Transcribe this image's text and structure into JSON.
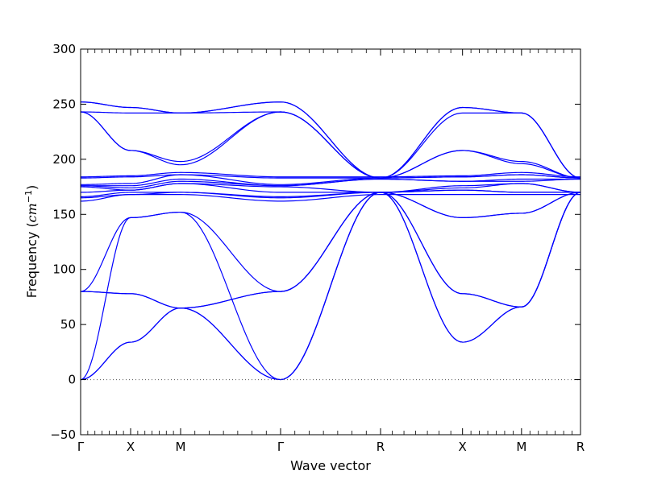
{
  "chart_data": {
    "type": "line",
    "title": "",
    "xlabel": "Wave vector",
    "ylabel": {
      "text": "Frequency (",
      "unit_math": "cm",
      "unit_sup": "−1",
      "suffix": ")"
    },
    "ylim": [
      -50,
      300
    ],
    "yticks": [
      -50,
      0,
      50,
      100,
      150,
      200,
      250,
      300
    ],
    "xlim": [
      0,
      10
    ],
    "high_symmetry_points": [
      {
        "label": "Γ",
        "x": 0
      },
      {
        "label": "X",
        "x": 1
      },
      {
        "label": "M",
        "x": 2
      },
      {
        "label": "Γ",
        "x": 4
      },
      {
        "label": "R",
        "x": 6
      },
      {
        "label": "X",
        "x": 7.64
      },
      {
        "label": "M",
        "x": 8.82
      },
      {
        "label": "R",
        "x": 10
      }
    ],
    "zero_line": {
      "y": 0,
      "style": "dotted",
      "color": "#555555"
    },
    "line_color": "#0000ff",
    "grid": false,
    "series": [
      {
        "x": [
          0,
          1,
          2,
          4,
          6,
          7.64,
          8.82,
          10
        ],
        "values": [
          0,
          34,
          65,
          0,
          170,
          34,
          66,
          170
        ]
      },
      {
        "x": [
          0,
          1,
          2,
          4,
          6,
          7.64,
          8.82,
          10
        ],
        "values": [
          0,
          34,
          65,
          0,
          170,
          34,
          66,
          170
        ]
      },
      {
        "x": [
          0,
          1,
          2,
          4,
          6,
          7.64,
          8.82,
          10
        ],
        "values": [
          0,
          147,
          152,
          0,
          170,
          147,
          151,
          170
        ]
      },
      {
        "x": [
          0,
          1,
          2,
          4,
          6,
          7.64,
          8.82,
          10
        ],
        "values": [
          80,
          78,
          65,
          80,
          170,
          78,
          66,
          170
        ]
      },
      {
        "x": [
          0,
          1,
          2,
          4,
          6,
          7.64,
          8.82,
          10
        ],
        "values": [
          80,
          78,
          65,
          80,
          170,
          78,
          66,
          170
        ]
      },
      {
        "x": [
          0,
          1,
          2,
          4,
          6,
          7.64,
          8.82,
          10
        ],
        "values": [
          80,
          147,
          152,
          80,
          170,
          147,
          151,
          170
        ]
      },
      {
        "x": [
          0,
          1,
          2,
          4,
          6,
          7.64,
          8.82,
          10
        ],
        "values": [
          162,
          168,
          168,
          162,
          168,
          168,
          168,
          168
        ]
      },
      {
        "x": [
          0,
          1,
          2,
          4,
          6,
          7.64,
          8.82,
          10
        ],
        "values": [
          165,
          168,
          170,
          165,
          170,
          172,
          170,
          170
        ]
      },
      {
        "x": [
          0,
          1,
          2,
          4,
          6,
          7.64,
          8.82,
          10
        ],
        "values": [
          166,
          170,
          170,
          166,
          170,
          172,
          170,
          170
        ]
      },
      {
        "x": [
          0,
          1,
          2,
          4,
          6,
          7.64,
          8.82,
          10
        ],
        "values": [
          170,
          172,
          178,
          170,
          170,
          174,
          178,
          170
        ]
      },
      {
        "x": [
          0,
          1,
          2,
          4,
          6,
          7.64,
          8.82,
          10
        ],
        "values": [
          175,
          172,
          178,
          175,
          170,
          176,
          178,
          170
        ]
      },
      {
        "x": [
          0,
          1,
          2,
          4,
          6,
          7.64,
          8.82,
          10
        ],
        "values": [
          176,
          174,
          180,
          176,
          182,
          180,
          180,
          182
        ]
      },
      {
        "x": [
          0,
          1,
          2,
          4,
          6,
          7.64,
          8.82,
          10
        ],
        "values": [
          176,
          176,
          182,
          176,
          182,
          180,
          182,
          182
        ]
      },
      {
        "x": [
          0,
          1,
          2,
          4,
          6,
          7.64,
          8.82,
          10
        ],
        "values": [
          177,
          178,
          186,
          177,
          183,
          184,
          186,
          183
        ]
      },
      {
        "x": [
          0,
          1,
          2,
          4,
          6,
          7.64,
          8.82,
          10
        ],
        "values": [
          183,
          184,
          186,
          183,
          183,
          184,
          186,
          183
        ]
      },
      {
        "x": [
          0,
          1,
          2,
          4,
          6,
          7.64,
          8.82,
          10
        ],
        "values": [
          184,
          185,
          188,
          184,
          184,
          185,
          188,
          184
        ]
      },
      {
        "x": [
          0,
          1,
          2,
          4,
          6,
          7.64,
          8.82,
          10
        ],
        "values": [
          243,
          208,
          195,
          243,
          183,
          208,
          198,
          183
        ]
      },
      {
        "x": [
          0,
          1,
          2,
          4,
          6,
          7.64,
          8.82,
          10
        ],
        "values": [
          243,
          208,
          198,
          243,
          183,
          208,
          196,
          183
        ]
      },
      {
        "x": [
          0,
          1,
          2,
          4,
          6,
          7.64,
          8.82,
          10
        ],
        "values": [
          243,
          242,
          242,
          243,
          183,
          242,
          242,
          183
        ]
      },
      {
        "x": [
          0,
          1,
          2,
          4,
          6,
          7.64,
          8.82,
          10
        ],
        "values": [
          252,
          247,
          242,
          252,
          183,
          247,
          242,
          183
        ]
      },
      {
        "x": [
          0,
          1,
          2,
          4,
          6,
          7.64,
          8.82,
          10
        ],
        "values": [
          252,
          247,
          242,
          252,
          183,
          247,
          242,
          183
        ]
      }
    ]
  }
}
